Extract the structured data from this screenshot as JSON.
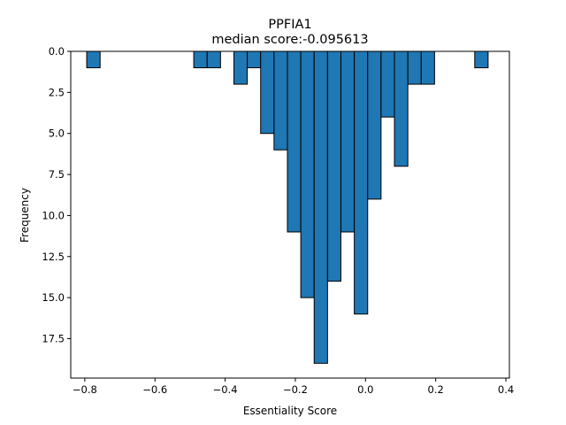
{
  "chart_data": {
    "type": "bar",
    "title": "PPFIA1",
    "subtitle": "median score:-0.095613",
    "xlabel": "Essentiality Score",
    "ylabel": "Frequency",
    "bar_color": "#1f77b4",
    "edge_color": "#000000",
    "xlim": [
      -0.84,
      0.41
    ],
    "ylim": [
      19.9,
      0
    ],
    "y_inverted": true,
    "grid": false,
    "legend": "none",
    "x_ticks": [
      -0.8,
      -0.6,
      -0.4,
      -0.2,
      0.0,
      0.2,
      0.4
    ],
    "x_tick_labels": [
      "−0.8",
      "−0.6",
      "−0.4",
      "−0.2",
      "0.0",
      "0.2",
      "0.4"
    ],
    "y_ticks": [
      0,
      2.5,
      5,
      7.5,
      10,
      12.5,
      15,
      17.5
    ],
    "y_tick_labels": [
      "0.0",
      "2.5",
      "5.0",
      "7.5",
      "10.0",
      "12.5",
      "15.0",
      "17.5"
    ],
    "bin_width": 0.0381,
    "bins": [
      {
        "x": -0.7754,
        "count": 1
      },
      {
        "x": -0.4704,
        "count": 1
      },
      {
        "x": -0.4323,
        "count": 1
      },
      {
        "x": -0.356,
        "count": 2
      },
      {
        "x": -0.3179,
        "count": 1
      },
      {
        "x": -0.2798,
        "count": 5
      },
      {
        "x": -0.2417,
        "count": 6
      },
      {
        "x": -0.2035,
        "count": 11
      },
      {
        "x": -0.1654,
        "count": 15
      },
      {
        "x": -0.1273,
        "count": 19
      },
      {
        "x": -0.0892,
        "count": 14
      },
      {
        "x": -0.051,
        "count": 11
      },
      {
        "x": -0.0129,
        "count": 16
      },
      {
        "x": 0.0252,
        "count": 9
      },
      {
        "x": 0.0633,
        "count": 4
      },
      {
        "x": 0.1015,
        "count": 7
      },
      {
        "x": 0.1396,
        "count": 2
      },
      {
        "x": 0.1777,
        "count": 2
      },
      {
        "x": 0.3302,
        "count": 1
      }
    ]
  }
}
